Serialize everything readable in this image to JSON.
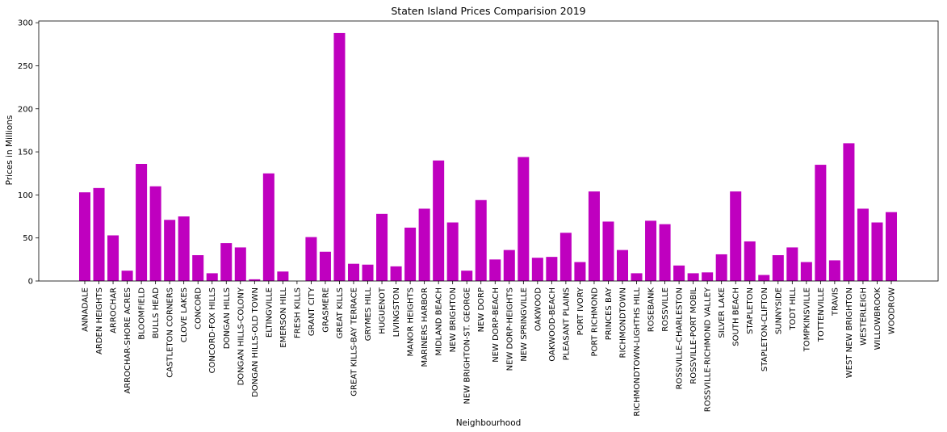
{
  "chart_data": {
    "type": "bar",
    "title": "Staten Island Prices Comparision 2019",
    "xlabel": "Neighbourhood",
    "ylabel": "Prices in Millions",
    "ylim": [
      0,
      302
    ],
    "yticks": [
      0,
      50,
      100,
      150,
      200,
      250,
      300
    ],
    "grid": false,
    "bar_color": "#bf00bf",
    "categories": [
      "ANNADALE",
      "ARDEN HEIGHTS",
      "ARROCHAR",
      "ARROCHAR-SHORE ACRES",
      "BLOOMFIELD",
      "BULLS HEAD",
      "CASTLETON CORNERS",
      "CLOVE LAKES",
      "CONCORD",
      "CONCORD-FOX HILLS",
      "DONGAN HILLS",
      "DONGAN HILLS-COLONY",
      "DONGAN HILLS-OLD TOWN",
      "ELTINGVILLE",
      "EMERSON HILL",
      "FRESH KILLS",
      "GRANT CITY",
      "GRASMERE",
      "GREAT KILLS",
      "GREAT KILLS-BAY TERRACE",
      "GRYMES HILL",
      "HUGUENOT",
      "LIVINGSTON",
      "MANOR HEIGHTS",
      "MARINERS HARBOR",
      "MIDLAND BEACH",
      "NEW BRIGHTON",
      "NEW BRIGHTON-ST. GEORGE",
      "NEW DORP",
      "NEW DORP-BEACH",
      "NEW DORP-HEIGHTS",
      "NEW SPRINGVILLE",
      "OAKWOOD",
      "OAKWOOD-BEACH",
      "PLEASANT PLAINS",
      "PORT IVORY",
      "PORT RICHMOND",
      "PRINCES BAY",
      "RICHMONDTOWN",
      "RICHMONDTOWN-LIGHTHS HILL",
      "ROSEBANK",
      "ROSSVILLE",
      "ROSSVILLE-CHARLESTON",
      "ROSSVILLE-PORT MOBIL",
      "ROSSVILLE-RICHMOND VALLEY",
      "SILVER LAKE",
      "SOUTH BEACH",
      "STAPLETON",
      "STAPLETON-CLIFTON",
      "SUNNYSIDE",
      "TODT HILL",
      "TOMPKINSVILLE",
      "TOTTENVILLE",
      "TRAVIS",
      "WEST NEW BRIGHTON",
      "WESTERLEIGH",
      "WILLOWBROOK",
      "WOODROW"
    ],
    "values": [
      103,
      108,
      53,
      12,
      136,
      110,
      71,
      75,
      30,
      9,
      44,
      39,
      2,
      125,
      11,
      0,
      51,
      34,
      288,
      20,
      19,
      78,
      17,
      62,
      84,
      140,
      68,
      12,
      94,
      25,
      36,
      144,
      27,
      28,
      56,
      22,
      104,
      69,
      36,
      9,
      70,
      66,
      18,
      9,
      10,
      31,
      104,
      46,
      7,
      30,
      39,
      22,
      135,
      24,
      160,
      84,
      68,
      80
    ]
  }
}
